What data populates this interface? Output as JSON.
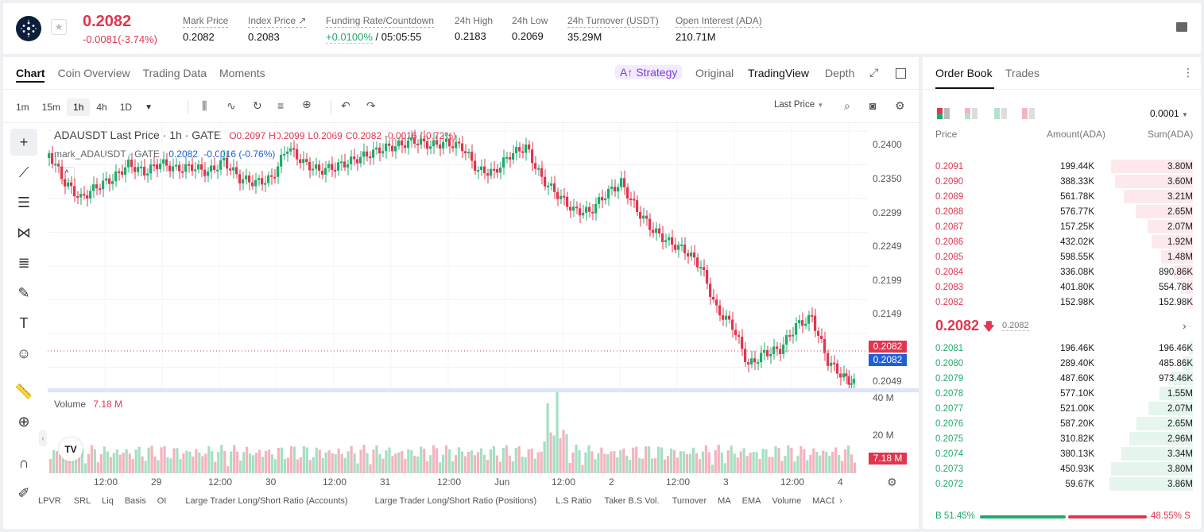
{
  "header": {
    "price": "0.2082",
    "change": "-0.0081(-3.74%)",
    "stats": [
      {
        "label": "Mark Price",
        "value": "0.2082"
      },
      {
        "label": "Index Price ↗",
        "value": "0.2083"
      },
      {
        "label": "Funding Rate/Countdown",
        "value_green": "+0.0100%",
        "value": "/ 05:05:55"
      },
      {
        "label": "24h High",
        "value": "0.2183"
      },
      {
        "label": "24h Low",
        "value": "0.2069"
      },
      {
        "label": "24h Turnover (USDT)",
        "value": "35.29M"
      },
      {
        "label": "Open Interest (ADA)",
        "value": "210.71M"
      }
    ]
  },
  "chart_tabs": [
    "Chart",
    "Coin Overview",
    "Trading Data",
    "Moments"
  ],
  "view_tabs": {
    "strategy": "A↑ Strategy",
    "original": "Original",
    "tradingview": "TradingView",
    "depth": "Depth"
  },
  "intervals": [
    "1m",
    "15m",
    "1h",
    "4h",
    "1D"
  ],
  "last_price_select": "Last Price",
  "legend": {
    "title": "ADAUSDT Last Price · 1h · GATE",
    "o": "O0.2097",
    "h": "H0.2099",
    "l": "L0.2069",
    "c": "C0.2082",
    "chg": "-0.0016 (-0.72%)",
    "mark_label": "mark_ADAUSDT · GATE",
    "mark_val": "0.2082",
    "mark_chg": "-0.0016 (-0.76%)"
  },
  "price_axis": [
    "0.2400",
    "0.2350",
    "0.2299",
    "0.2249",
    "0.2199",
    "0.2149",
    "0.2049"
  ],
  "price_tags": {
    "last": "0.2082",
    "mark": "0.2082"
  },
  "volume": {
    "label": "Volume",
    "value": "7.18 M",
    "axis": [
      "40 M",
      "20 M"
    ],
    "tag": "7.18 M"
  },
  "time_axis": [
    "12:00",
    "29",
    "12:00",
    "30",
    "12:00",
    "31",
    "12:00",
    "Jun",
    "12:00",
    "2",
    "12:00",
    "3",
    "12:00",
    "4"
  ],
  "indicators": [
    "LPVR",
    "SRL",
    "Liq",
    "Basis",
    "OI",
    "Large Trader Long/Short Ratio (Accounts)",
    "Large Trader Long/Short Ratio (Positions)",
    "L.S Ratio",
    "Taker B.S Vol.",
    "Turnover",
    "MA",
    "EMA",
    "Volume",
    "MACD"
  ],
  "orderbook": {
    "tabs": [
      "Order Book",
      "Trades"
    ],
    "precision": "0.0001",
    "headers": [
      "Price",
      "Amount(ADA)",
      "Sum(ADA)"
    ],
    "asks": [
      [
        "0.2091",
        "199.44K",
        "3.80M",
        0.98
      ],
      [
        "0.2090",
        "388.33K",
        "3.60M",
        0.93
      ],
      [
        "0.2089",
        "561.78K",
        "3.21M",
        0.83
      ],
      [
        "0.2088",
        "576.77K",
        "2.65M",
        0.69
      ],
      [
        "0.2087",
        "157.25K",
        "2.07M",
        0.54
      ],
      [
        "0.2086",
        "432.02K",
        "1.92M",
        0.5
      ],
      [
        "0.2085",
        "598.55K",
        "1.48M",
        0.38
      ],
      [
        "0.2084",
        "336.08K",
        "890.86K",
        0.23
      ],
      [
        "0.2083",
        "401.80K",
        "554.78K",
        0.14
      ],
      [
        "0.2082",
        "152.98K",
        "152.98K",
        0.04
      ]
    ],
    "mid_price": "0.2082",
    "mid_mark": "0.2082",
    "bids": [
      [
        "0.2081",
        "196.46K",
        "196.46K",
        0.05
      ],
      [
        "0.2080",
        "289.40K",
        "485.86K",
        0.12
      ],
      [
        "0.2079",
        "487.60K",
        "973.46K",
        0.25
      ],
      [
        "0.2078",
        "577.10K",
        "1.55M",
        0.4
      ],
      [
        "0.2077",
        "521.00K",
        "2.07M",
        0.53
      ],
      [
        "0.2076",
        "587.20K",
        "2.65M",
        0.68
      ],
      [
        "0.2075",
        "310.82K",
        "2.96M",
        0.76
      ],
      [
        "0.2074",
        "380.13K",
        "3.34M",
        0.86
      ],
      [
        "0.2073",
        "450.93K",
        "3.80M",
        0.98
      ],
      [
        "0.2072",
        "59.67K",
        "3.86M",
        1.0
      ]
    ],
    "buy_pct": "B 51.45%",
    "sell_pct": "48.55% S",
    "buy_ratio": 0.5145
  },
  "colors": {
    "up": "#1fab6b",
    "down": "#e0364f",
    "accent": "#1f5fd6",
    "strategy": "#7b3fe4"
  }
}
